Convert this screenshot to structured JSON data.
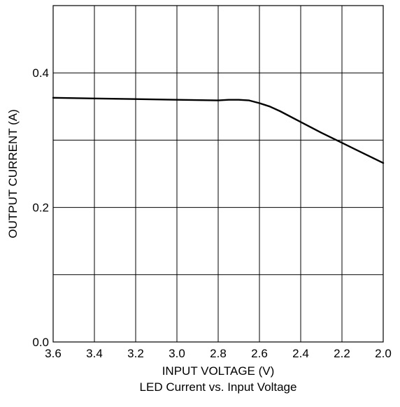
{
  "chart_data": {
    "type": "line",
    "title": "",
    "caption": "LED Current vs. Input Voltage",
    "xlabel": "INPUT VOLTAGE (V)",
    "ylabel": "OUTPUT CURRENT (A)",
    "x_axis_reversed": true,
    "xlim": [
      3.6,
      2.0
    ],
    "ylim": [
      0.0,
      0.5
    ],
    "grid": true,
    "x_ticks": [
      3.6,
      3.4,
      3.2,
      3.0,
      2.8,
      2.6,
      2.4,
      2.2,
      2.0
    ],
    "x_tick_labels": [
      "3.6",
      "3.4",
      "3.2",
      "3.0",
      "2.8",
      "2.6",
      "2.4",
      "2.2",
      "2.0"
    ],
    "y_gridlines": [
      0.0,
      0.1,
      0.2,
      0.3,
      0.4,
      0.5
    ],
    "y_ticks": [
      0.0,
      0.2,
      0.4
    ],
    "y_tick_labels": [
      "0.0",
      "0.2",
      "0.4"
    ],
    "line_color": "#000000",
    "series": [
      {
        "x": [
          3.6,
          3.4,
          3.2,
          3.0,
          2.8,
          2.75,
          2.7,
          2.65,
          2.6,
          2.55,
          2.5,
          2.4,
          2.3,
          2.2,
          2.1,
          2.0
        ],
        "y": [
          0.363,
          0.362,
          0.361,
          0.36,
          0.359,
          0.36,
          0.36,
          0.359,
          0.355,
          0.35,
          0.343,
          0.327,
          0.311,
          0.296,
          0.281,
          0.266
        ]
      }
    ]
  }
}
